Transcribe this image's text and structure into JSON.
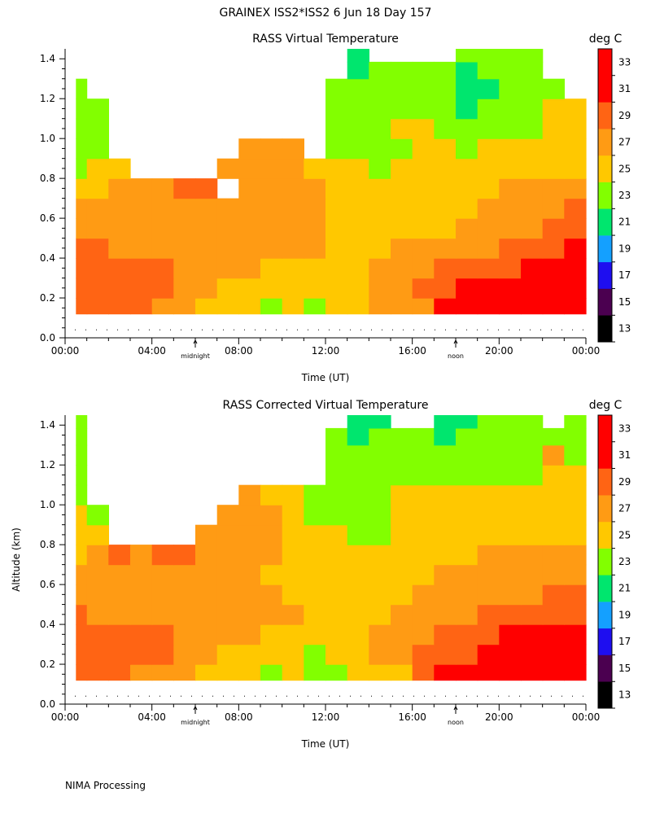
{
  "header": {
    "title": "GRAINEX ISS2*ISS2   6 Jun 18 Day 157"
  },
  "footer": {
    "text": "NIMA Processing"
  },
  "colors": {
    "c13": "#000000",
    "c15": "#4b0050",
    "c17": "#1e0ef0",
    "c19": "#14a0ff",
    "c21": "#00e66e",
    "c23": "#82ff00",
    "c25": "#ffc800",
    "c27": "#ff9b14",
    "c29": "#ff6414",
    "c31": "#ff0000",
    "noData": "#ffffff"
  },
  "chart_data": [
    {
      "type": "heatmap",
      "title": "RASS Virtual Temperature",
      "xlabel": "Time (UT)",
      "ylabel": "",
      "xlim": [
        0,
        24
      ],
      "ylim": [
        0,
        1.45
      ],
      "xticks": [
        "00:00",
        "04:00",
        "08:00",
        "12:00",
        "16:00",
        "20:00",
        "00:00"
      ],
      "yticks": [
        "0.0",
        "0.2",
        "0.4",
        "0.6",
        "0.8",
        "1.0",
        "1.2",
        "1.4"
      ],
      "markers": [
        {
          "label": "midnight",
          "x": 6
        },
        {
          "label": "noon",
          "x": 18
        }
      ],
      "colorbar": {
        "unit": "deg C",
        "levels": [
          13,
          15,
          17,
          19,
          21,
          23,
          25,
          27,
          29,
          31,
          33
        ]
      },
      "x": [
        0.5,
        1.5,
        2.5,
        3.5,
        4.5,
        5.5,
        6.5,
        7.5,
        8.5,
        9.5,
        10.5,
        11.5,
        12.5,
        13.5,
        14.5,
        15.5,
        16.5,
        17.5,
        18.5,
        19.5,
        20.5,
        21.5,
        22.5,
        23.5
      ],
      "y": [
        0.15,
        0.25,
        0.35,
        0.45,
        0.55,
        0.65,
        0.75,
        0.85,
        0.95,
        1.05,
        1.15,
        1.25,
        1.35,
        1.42
      ],
      "values": [
        [
          30,
          30,
          29,
          29,
          28,
          27,
          26,
          25,
          25,
          24,
          25,
          23,
          25,
          25,
          27,
          27,
          28,
          31,
          31,
          32,
          32,
          32,
          32,
          32
        ],
        [
          29,
          29,
          29,
          30,
          29,
          28,
          27,
          26,
          26,
          26,
          26,
          25,
          26,
          26,
          27,
          28,
          29,
          29,
          31,
          31,
          32,
          32,
          32,
          32
        ],
        [
          29,
          29,
          29,
          29,
          29,
          28,
          27,
          27,
          27,
          26,
          26,
          26,
          26,
          26,
          27,
          28,
          28,
          29,
          29,
          29,
          30,
          31,
          31,
          32
        ],
        [
          29,
          29,
          28,
          28,
          28,
          28,
          27,
          27,
          27,
          27,
          27,
          27,
          26,
          25,
          26,
          27,
          27,
          27,
          28,
          28,
          29,
          29,
          30,
          31
        ],
        [
          27,
          27,
          27,
          27,
          27,
          27,
          27,
          27,
          27,
          27,
          27,
          27,
          26,
          26,
          26,
          26,
          26,
          26,
          27,
          27,
          28,
          28,
          29,
          29
        ],
        [
          27,
          27,
          27,
          27,
          27,
          27,
          28,
          27,
          27,
          27,
          27,
          27,
          26,
          26,
          26,
          26,
          26,
          26,
          26,
          27,
          27,
          28,
          28,
          29
        ],
        [
          25,
          25,
          28,
          27,
          28,
          29,
          29,
          null,
          27,
          27,
          27,
          27,
          26,
          26,
          25,
          26,
          26,
          25,
          25,
          26,
          27,
          27,
          27,
          27
        ],
        [
          24,
          25,
          25,
          null,
          null,
          null,
          null,
          27,
          27,
          27,
          27,
          26,
          25,
          25,
          24,
          25,
          25,
          25,
          25,
          25,
          26,
          26,
          26,
          26
        ],
        [
          24,
          24,
          null,
          null,
          null,
          null,
          null,
          null,
          27,
          27,
          27,
          null,
          23,
          23,
          24,
          24,
          25,
          25,
          24,
          25,
          25,
          25,
          25,
          25
        ],
        [
          23,
          23,
          null,
          null,
          null,
          null,
          null,
          null,
          null,
          null,
          null,
          null,
          23,
          23,
          23,
          25,
          25,
          24,
          24,
          24,
          24,
          24,
          25,
          25
        ],
        [
          23,
          23,
          null,
          null,
          null,
          null,
          null,
          null,
          null,
          null,
          null,
          null,
          23,
          23,
          23,
          24,
          24,
          24,
          22,
          24,
          23,
          24,
          25,
          25
        ],
        [
          23,
          null,
          null,
          null,
          null,
          null,
          null,
          null,
          null,
          null,
          null,
          null,
          23,
          23,
          23,
          24,
          24,
          24,
          22,
          22,
          23,
          23,
          24,
          null
        ],
        [
          null,
          null,
          null,
          null,
          null,
          null,
          null,
          null,
          null,
          null,
          null,
          null,
          null,
          22,
          23,
          24,
          24,
          23,
          22,
          23,
          23,
          24,
          null,
          null
        ],
        [
          null,
          null,
          null,
          null,
          null,
          null,
          null,
          null,
          null,
          null,
          null,
          null,
          null,
          22,
          null,
          null,
          null,
          null,
          23,
          23,
          23,
          23,
          null,
          null
        ]
      ]
    },
    {
      "type": "heatmap",
      "title": "RASS Corrected Virtual Temperature",
      "xlabel": "Time (UT)",
      "ylabel": "Altitude (km)",
      "xlim": [
        0,
        24
      ],
      "ylim": [
        0,
        1.45
      ],
      "xticks": [
        "00:00",
        "04:00",
        "08:00",
        "12:00",
        "16:00",
        "20:00",
        "00:00"
      ],
      "yticks": [
        "0.0",
        "0.2",
        "0.4",
        "0.6",
        "0.8",
        "1.0",
        "1.2",
        "1.4"
      ],
      "markers": [
        {
          "label": "midnight",
          "x": 6
        },
        {
          "label": "noon",
          "x": 18
        }
      ],
      "colorbar": {
        "unit": "deg C",
        "levels": [
          13,
          15,
          17,
          19,
          21,
          23,
          25,
          27,
          29,
          31,
          33
        ]
      },
      "x": [
        0.5,
        1.5,
        2.5,
        3.5,
        4.5,
        5.5,
        6.5,
        7.5,
        8.5,
        9.5,
        10.5,
        11.5,
        12.5,
        13.5,
        14.5,
        15.5,
        16.5,
        17.5,
        18.5,
        19.5,
        20.5,
        21.5,
        22.5,
        23.5
      ],
      "y": [
        0.15,
        0.25,
        0.35,
        0.45,
        0.55,
        0.65,
        0.75,
        0.85,
        0.95,
        1.05,
        1.15,
        1.25,
        1.35,
        1.42
      ],
      "values": [
        [
          30,
          29,
          29,
          28,
          28,
          27,
          26,
          25,
          25,
          24,
          25,
          23,
          24,
          25,
          26,
          26,
          29,
          31,
          31,
          31,
          32,
          32,
          32,
          32
        ],
        [
          29,
          29,
          29,
          29,
          29,
          28,
          27,
          26,
          26,
          26,
          26,
          24,
          25,
          26,
          27,
          27,
          29,
          29,
          30,
          31,
          31,
          32,
          32,
          32
        ],
        [
          29,
          29,
          29,
          29,
          29,
          28,
          27,
          27,
          27,
          26,
          26,
          26,
          26,
          26,
          27,
          28,
          28,
          29,
          29,
          30,
          31,
          31,
          31,
          31
        ],
        [
          29,
          28,
          28,
          28,
          28,
          27,
          27,
          27,
          27,
          27,
          27,
          26,
          25,
          25,
          26,
          27,
          28,
          28,
          28,
          29,
          29,
          29,
          30,
          30
        ],
        [
          27,
          27,
          27,
          27,
          27,
          27,
          27,
          27,
          27,
          27,
          26,
          26,
          26,
          26,
          26,
          26,
          27,
          27,
          27,
          28,
          28,
          28,
          29,
          29
        ],
        [
          27,
          27,
          27,
          27,
          27,
          28,
          27,
          27,
          27,
          26,
          26,
          25,
          26,
          26,
          26,
          26,
          26,
          27,
          27,
          27,
          28,
          28,
          28,
          28
        ],
        [
          26,
          27,
          29,
          28,
          29,
          29,
          28,
          27,
          27,
          27,
          26,
          26,
          26,
          25,
          25,
          26,
          26,
          26,
          26,
          27,
          27,
          27,
          27,
          27
        ],
        [
          25,
          25,
          null,
          null,
          null,
          null,
          27,
          27,
          27,
          27,
          26,
          26,
          25,
          24,
          24,
          25,
          25,
          25,
          25,
          25,
          26,
          26,
          26,
          26
        ],
        [
          25,
          24,
          null,
          null,
          null,
          null,
          null,
          27,
          27,
          27,
          25,
          24,
          24,
          24,
          24,
          25,
          25,
          25,
          25,
          25,
          25,
          25,
          25,
          25
        ],
        [
          24,
          null,
          null,
          null,
          null,
          null,
          null,
          null,
          27,
          26,
          26,
          24,
          24,
          24,
          24,
          25,
          25,
          25,
          25,
          25,
          25,
          25,
          25,
          25
        ],
        [
          24,
          null,
          null,
          null,
          null,
          null,
          null,
          null,
          null,
          null,
          null,
          null,
          24,
          23,
          24,
          24,
          24,
          24,
          23,
          24,
          24,
          24,
          25,
          25
        ],
        [
          23,
          null,
          null,
          null,
          null,
          null,
          null,
          null,
          null,
          null,
          null,
          null,
          24,
          23,
          23,
          24,
          24,
          24,
          23,
          23,
          23,
          24,
          27,
          24
        ],
        [
          23,
          null,
          null,
          null,
          null,
          null,
          null,
          null,
          null,
          null,
          null,
          null,
          23,
          22,
          23,
          23,
          23,
          22,
          23,
          23,
          23,
          23,
          24,
          23
        ],
        [
          23,
          null,
          null,
          null,
          null,
          null,
          null,
          null,
          null,
          null,
          null,
          null,
          null,
          22,
          22,
          null,
          null,
          22,
          22,
          23,
          23,
          23,
          null,
          24
        ]
      ]
    }
  ]
}
